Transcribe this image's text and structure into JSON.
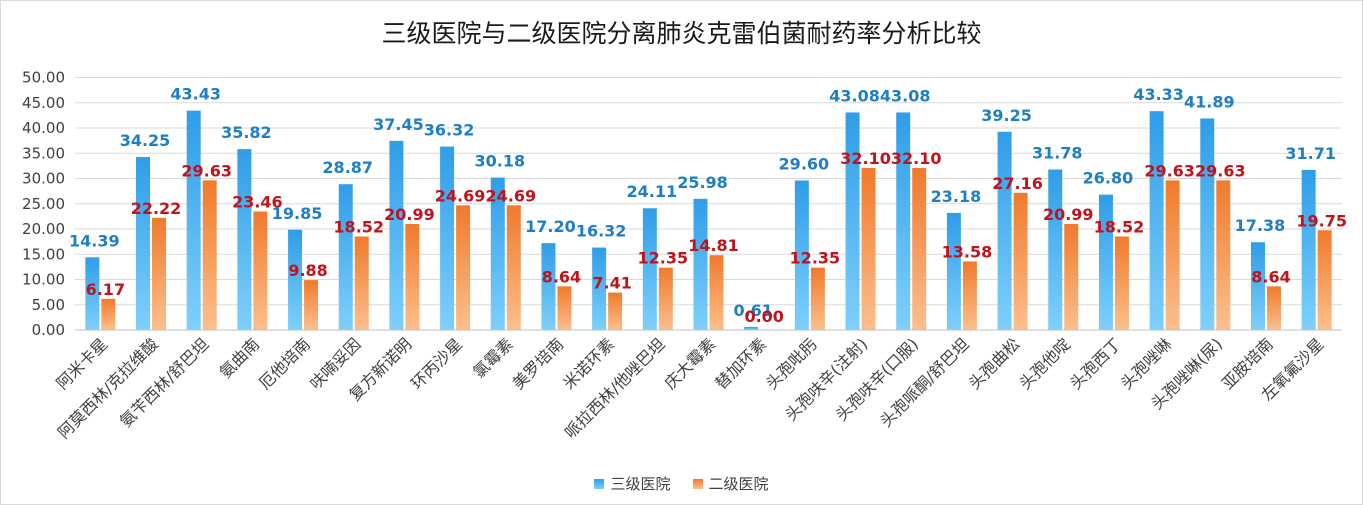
{
  "chart_data": {
    "type": "bar",
    "title": "三级医院与二级医院分离肺炎克雷伯菌耐药率分析比较",
    "categories": [
      "阿米卡星",
      "阿莫西林/克拉维酸",
      "氨苄西林/舒巴坦",
      "氨曲南",
      "厄他培南",
      "呋喃妥因",
      "复方新诺明",
      "环丙沙星",
      "氯霉素",
      "美罗培南",
      "米诺环素",
      "哌拉西林/他唑巴坦",
      "庆大霉素",
      "替加环素",
      "头孢吡肟",
      "头孢呋辛(注射)",
      "头孢呋辛(口服)",
      "头孢哌酮/舒巴坦",
      "头孢曲松",
      "头孢他啶",
      "头孢西丁",
      "头孢唑啉",
      "头孢唑啉(尿)",
      "亚胺培南",
      "左氧氟沙星"
    ],
    "series": [
      {
        "name": "三级医院",
        "color": "#3aa9ee",
        "labels": [
          "14.39",
          "34.25",
          "43.43",
          "35.82",
          "19.85",
          "28.87",
          "37.45",
          "36.32",
          "30.18",
          "17.20",
          "16.32",
          "24.11",
          "25.98",
          "0.61",
          "29.60",
          "43.08",
          "43.08",
          "23.18",
          "39.25",
          "31.78",
          "26.80",
          "43.33",
          "41.89",
          "17.38",
          "31.71"
        ],
        "values": [
          14.39,
          34.25,
          43.43,
          35.82,
          19.85,
          28.87,
          37.45,
          36.32,
          30.18,
          17.2,
          16.32,
          24.11,
          25.98,
          0.61,
          29.6,
          43.08,
          43.08,
          23.18,
          39.25,
          31.78,
          26.8,
          43.33,
          41.89,
          17.38,
          31.71
        ]
      },
      {
        "name": "二级医院",
        "color": "#f48a3c",
        "labels": [
          "6.17",
          "22.22",
          "29.63",
          "23.46",
          "9.88",
          "18.52",
          "20.99",
          "24.69",
          "24.69",
          "8.64",
          "7.41",
          "12.35",
          "14.81",
          "0.00",
          "12.35",
          "32.10",
          "32.10",
          "13.58",
          "27.16",
          "20.99",
          "18.52",
          "29.63",
          "29.63",
          "8.64",
          "19.75"
        ],
        "values": [
          6.17,
          22.22,
          29.63,
          23.46,
          9.88,
          18.52,
          20.99,
          24.69,
          24.69,
          8.64,
          7.41,
          12.35,
          14.81,
          0.0,
          12.35,
          32.1,
          32.1,
          13.58,
          27.16,
          20.99,
          18.52,
          29.63,
          29.63,
          8.64,
          19.75
        ]
      }
    ],
    "y_ticks": [
      "0.00",
      "5.00",
      "10.00",
      "15.00",
      "20.00",
      "25.00",
      "30.00",
      "35.00",
      "40.00",
      "45.00",
      "50.00"
    ],
    "ylim": [
      0,
      50
    ],
    "grid": true,
    "legend_position": "bottom",
    "label_colors": [
      "#1f7fc4",
      "#c0141c"
    ]
  }
}
